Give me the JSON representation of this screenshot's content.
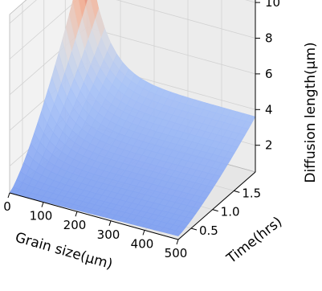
{
  "chart_data": {
    "type": "surface3d",
    "title": "",
    "xlabel": "Grain size(μm)",
    "ylabel": "Time(hrs)",
    "zlabel": "Diffusion length(μm)",
    "xlim": [
      0,
      500
    ],
    "ylim": [
      0.2,
      2.0
    ],
    "zlim": [
      0.5,
      10.5
    ],
    "xticks": [
      "0",
      "100",
      "200",
      "300",
      "400",
      "500"
    ],
    "yticks": [
      "0.5",
      "1.0",
      "1.5"
    ],
    "zticks": [
      "2",
      "4",
      "6",
      "8",
      "10"
    ],
    "colormap": "coolwarm",
    "grid": true,
    "corner_values": [
      {
        "grain_size": 0,
        "time": 2.0,
        "diffusion_length": 10.5
      },
      {
        "grain_size": 500,
        "time": 2.0,
        "diffusion_length": 3.6
      },
      {
        "grain_size": 0,
        "time": 0.2,
        "diffusion_length": 0.5
      },
      {
        "grain_size": 500,
        "time": 0.2,
        "diffusion_length": 0.7
      }
    ]
  }
}
